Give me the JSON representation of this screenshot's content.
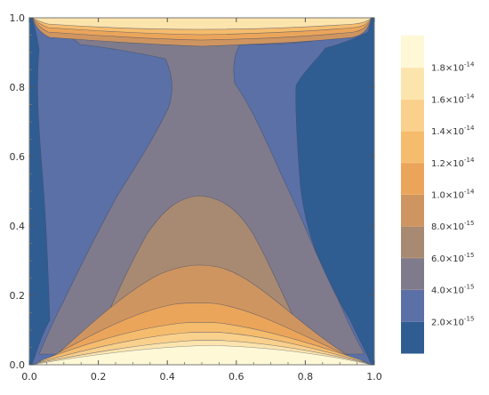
{
  "chart_data": {
    "type": "contour",
    "title": "",
    "xlabel": "",
    "ylabel": "",
    "xlim": [
      0.0,
      1.0
    ],
    "ylim": [
      0.0,
      1.0
    ],
    "x_ticks": [
      {
        "value": 0.0,
        "label": "0.0"
      },
      {
        "value": 0.2,
        "label": "0.2"
      },
      {
        "value": 0.4,
        "label": "0.4"
      },
      {
        "value": 0.6,
        "label": "0.6"
      },
      {
        "value": 0.8,
        "label": "0.8"
      },
      {
        "value": 1.0,
        "label": "1.0"
      }
    ],
    "y_ticks": [
      {
        "value": 0.0,
        "label": "0.0"
      },
      {
        "value": 0.2,
        "label": "0.2"
      },
      {
        "value": 0.4,
        "label": "0.4"
      },
      {
        "value": 0.6,
        "label": "0.6"
      },
      {
        "value": 0.8,
        "label": "0.8"
      },
      {
        "value": 1.0,
        "label": "1.0"
      }
    ],
    "contour_levels": [
      2e-15,
      4e-15,
      6e-15,
      8e-15,
      1e-14,
      1.2e-14,
      1.4e-14,
      1.6e-14,
      1.8e-14
    ],
    "legend": {
      "placement": "right",
      "bands": [
        {
          "color": "#2f5d92"
        },
        {
          "color": "#5a70a6"
        },
        {
          "color": "#807b8c"
        },
        {
          "color": "#a88a72"
        },
        {
          "color": "#cf9560"
        },
        {
          "color": "#eba55a"
        },
        {
          "color": "#f5bc6d"
        },
        {
          "color": "#f9d08c"
        },
        {
          "color": "#fce4ad"
        },
        {
          "color": "#fff8d6"
        }
      ],
      "labels": [
        {
          "mantissa": "2.0",
          "exponent": "-15"
        },
        {
          "mantissa": "4.0",
          "exponent": "-15"
        },
        {
          "mantissa": "6.0",
          "exponent": "-15"
        },
        {
          "mantissa": "8.0",
          "exponent": "-15"
        },
        {
          "mantissa": "1.0",
          "exponent": "-14"
        },
        {
          "mantissa": "1.2",
          "exponent": "-14"
        },
        {
          "mantissa": "1.4",
          "exponent": "-14"
        },
        {
          "mantissa": "1.6",
          "exponent": "-14"
        },
        {
          "mantissa": "1.8",
          "exponent": "-14"
        }
      ]
    },
    "grid": false
  }
}
